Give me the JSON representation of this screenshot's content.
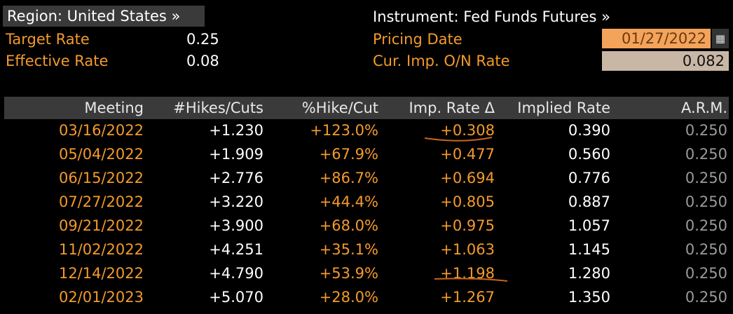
{
  "header": {
    "region_label": "Region: United States »",
    "target_rate_label": "Target Rate",
    "target_rate_value": "0.25",
    "effective_rate_label": "Effective Rate",
    "effective_rate_value": "0.08",
    "instrument_label": "Instrument: Fed Funds Futures »",
    "pricing_date_label": "Pricing Date",
    "pricing_date_value": "01/27/2022",
    "cur_rate_label": "Cur. Imp. O/N Rate",
    "cur_rate_value": "0.082",
    "calendar_icon": "calendar-icon"
  },
  "colors": {
    "background": "#000000",
    "label_orange": "#f39a2c",
    "header_bar": "#3a3a3a",
    "date_field": "#f4a35a",
    "rate_field": "#c9b7a5",
    "annotation": "#c9651a"
  },
  "table": {
    "columns": [
      "Meeting",
      "#Hikes/Cuts",
      "%Hike/Cut",
      "Imp. Rate Δ",
      "Implied Rate",
      "A.R.M."
    ],
    "rows": [
      {
        "meeting": "03/16/2022",
        "hikes": "+1.230",
        "pct": "+123.0%",
        "delta": "+0.308",
        "implied": "0.390",
        "arm": "0.250"
      },
      {
        "meeting": "05/04/2022",
        "hikes": "+1.909",
        "pct": "+67.9%",
        "delta": "+0.477",
        "implied": "0.560",
        "arm": "0.250"
      },
      {
        "meeting": "06/15/2022",
        "hikes": "+2.776",
        "pct": "+86.7%",
        "delta": "+0.694",
        "implied": "0.776",
        "arm": "0.250"
      },
      {
        "meeting": "07/27/2022",
        "hikes": "+3.220",
        "pct": "+44.4%",
        "delta": "+0.805",
        "implied": "0.887",
        "arm": "0.250"
      },
      {
        "meeting": "09/21/2022",
        "hikes": "+3.900",
        "pct": "+68.0%",
        "delta": "+0.975",
        "implied": "1.057",
        "arm": "0.250"
      },
      {
        "meeting": "11/02/2022",
        "hikes": "+4.251",
        "pct": "+35.1%",
        "delta": "+1.063",
        "implied": "1.145",
        "arm": "0.250"
      },
      {
        "meeting": "12/14/2022",
        "hikes": "+4.790",
        "pct": "+53.9%",
        "delta": "+1.198",
        "implied": "1.280",
        "arm": "0.250"
      },
      {
        "meeting": "02/01/2023",
        "hikes": "+5.070",
        "pct": "+28.0%",
        "delta": "+1.267",
        "implied": "1.350",
        "arm": "0.250"
      }
    ]
  }
}
